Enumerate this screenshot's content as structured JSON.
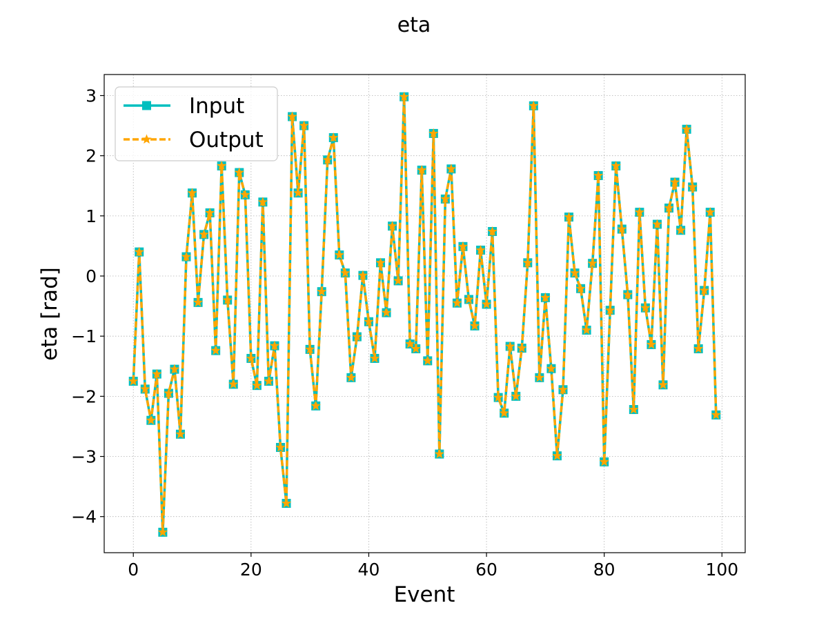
{
  "chart_data": {
    "type": "line",
    "title": "eta",
    "xlabel": "Event",
    "ylabel": "eta [rad]",
    "xlim": [
      -4.95,
      103.95
    ],
    "ylim": [
      -4.6,
      3.35
    ],
    "xticks": [
      0,
      20,
      40,
      60,
      80,
      100
    ],
    "xtick_labels": [
      "0",
      "20",
      "40",
      "60",
      "80",
      "100"
    ],
    "yticks": [
      -4,
      -3,
      -2,
      -1,
      0,
      1,
      2,
      3
    ],
    "ytick_labels": [
      "−4",
      "−3",
      "−2",
      "−1",
      "0",
      "1",
      "2",
      "3"
    ],
    "grid": true,
    "legend_position": "upper-left",
    "x": [
      0,
      1,
      2,
      3,
      4,
      5,
      6,
      7,
      8,
      9,
      10,
      11,
      12,
      13,
      14,
      15,
      16,
      17,
      18,
      19,
      20,
      21,
      22,
      23,
      24,
      25,
      26,
      27,
      28,
      29,
      30,
      31,
      32,
      33,
      34,
      35,
      36,
      37,
      38,
      39,
      40,
      41,
      42,
      43,
      44,
      45,
      46,
      47,
      48,
      49,
      50,
      51,
      52,
      53,
      54,
      55,
      56,
      57,
      58,
      59,
      60,
      61,
      62,
      63,
      64,
      65,
      66,
      67,
      68,
      69,
      70,
      71,
      72,
      73,
      74,
      75,
      76,
      77,
      78,
      79,
      80,
      81,
      82,
      83,
      84,
      85,
      86,
      87,
      88,
      89,
      90,
      91,
      92,
      93,
      94,
      95,
      96,
      97,
      98,
      99
    ],
    "series": [
      {
        "name": "Input",
        "color": "#00bfbf",
        "style": "solid",
        "marker": "square",
        "values": [
          -1.75,
          0.4,
          -1.88,
          -2.4,
          -1.63,
          -4.26,
          -1.95,
          -1.55,
          -2.63,
          0.32,
          1.38,
          -0.44,
          0.69,
          1.05,
          -1.24,
          1.83,
          -0.4,
          -1.8,
          1.72,
          1.35,
          -1.37,
          -1.82,
          1.23,
          -1.75,
          -1.16,
          -2.85,
          -3.78,
          2.65,
          1.38,
          2.5,
          -1.22,
          -2.16,
          -0.26,
          1.93,
          2.3,
          0.35,
          0.05,
          -1.69,
          -1.01,
          0.01,
          -0.76,
          -1.37,
          0.22,
          -0.61,
          0.83,
          -0.08,
          2.98,
          -1.13,
          -1.21,
          1.76,
          -1.41,
          2.37,
          -2.96,
          1.28,
          1.78,
          -0.45,
          0.49,
          -0.39,
          -0.83,
          0.43,
          -0.47,
          0.74,
          -2.02,
          -2.28,
          -1.17,
          -2.0,
          -1.2,
          0.22,
          2.83,
          -1.69,
          -0.36,
          -1.54,
          -2.99,
          -1.89,
          0.98,
          0.05,
          -0.21,
          -0.9,
          0.21,
          1.67,
          -3.09,
          -0.57,
          1.83,
          0.78,
          -0.31,
          -2.22,
          1.06,
          -0.53,
          -1.14,
          0.86,
          -1.81,
          1.13,
          1.56,
          0.76,
          2.44,
          1.48,
          -1.21,
          -0.24,
          1.06,
          -2.31
        ]
      },
      {
        "name": "Output",
        "color": "#ffa500",
        "style": "dashed",
        "marker": "star",
        "values": [
          -1.75,
          0.4,
          -1.88,
          -2.4,
          -1.63,
          -4.26,
          -1.95,
          -1.55,
          -2.63,
          0.32,
          1.38,
          -0.44,
          0.69,
          1.05,
          -1.24,
          1.83,
          -0.4,
          -1.8,
          1.72,
          1.35,
          -1.37,
          -1.82,
          1.23,
          -1.75,
          -1.16,
          -2.85,
          -3.78,
          2.65,
          1.38,
          2.5,
          -1.22,
          -2.16,
          -0.26,
          1.93,
          2.3,
          0.35,
          0.05,
          -1.69,
          -1.01,
          0.01,
          -0.76,
          -1.37,
          0.22,
          -0.61,
          0.83,
          -0.08,
          2.98,
          -1.13,
          -1.21,
          1.76,
          -1.41,
          2.37,
          -2.96,
          1.28,
          1.78,
          -0.45,
          0.49,
          -0.39,
          -0.83,
          0.43,
          -0.47,
          0.74,
          -2.02,
          -2.28,
          -1.17,
          -2.0,
          -1.2,
          0.22,
          2.83,
          -1.69,
          -0.36,
          -1.54,
          -2.99,
          -1.89,
          0.98,
          0.05,
          -0.21,
          -0.9,
          0.21,
          1.67,
          -3.09,
          -0.57,
          1.83,
          0.78,
          -0.31,
          -2.22,
          1.06,
          -0.53,
          -1.14,
          0.86,
          -1.81,
          1.13,
          1.56,
          0.76,
          2.44,
          1.48,
          -1.21,
          -0.24,
          1.06,
          -2.31
        ]
      }
    ]
  }
}
